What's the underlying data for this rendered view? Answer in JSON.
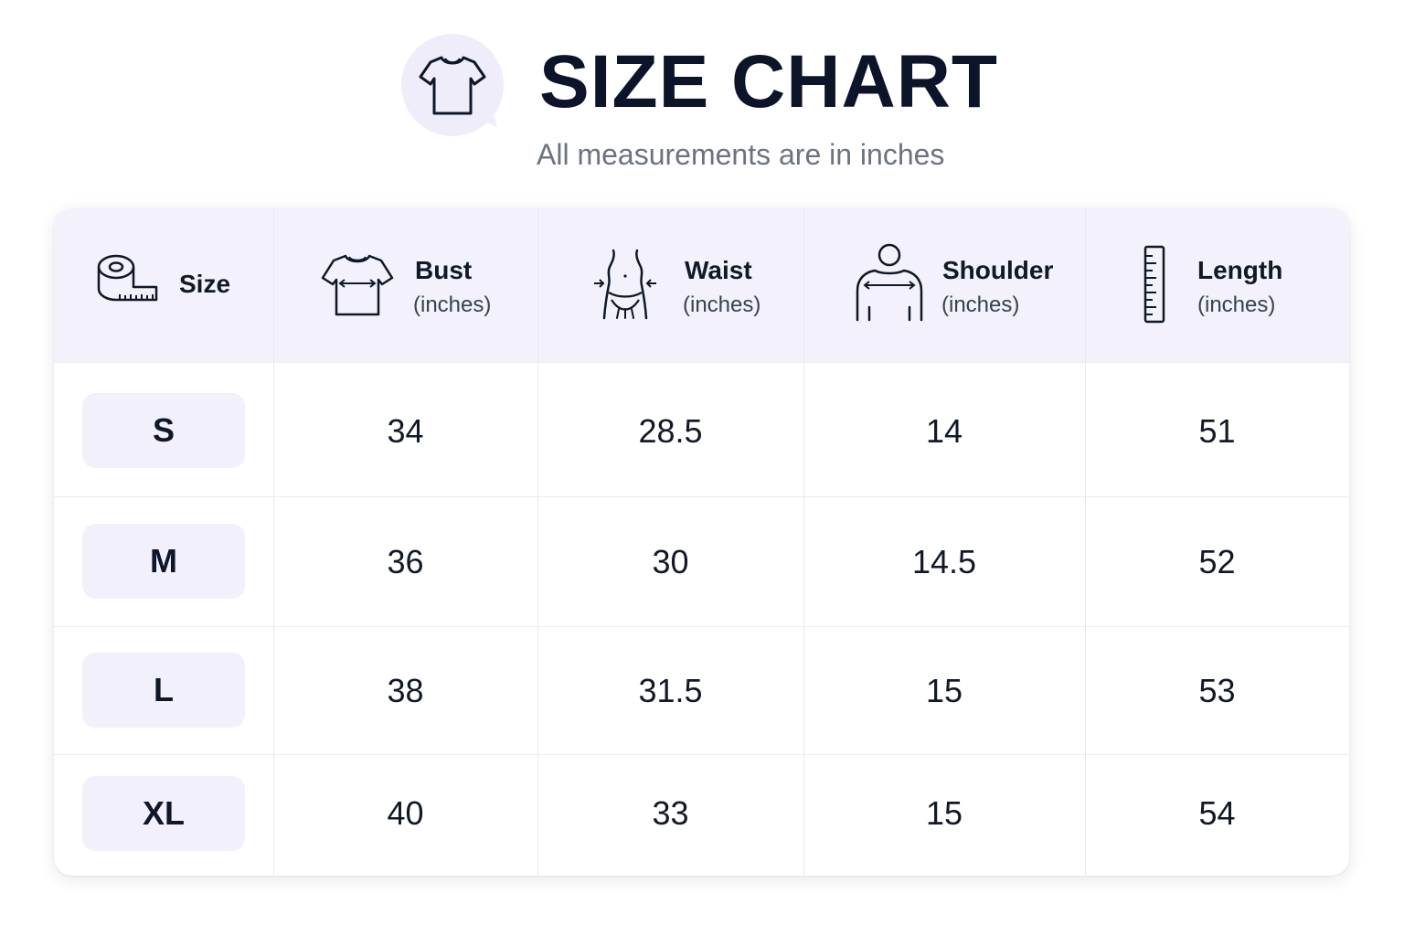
{
  "header": {
    "title": "SIZE CHART",
    "subtitle": "All measurements are in inches",
    "logo_icon": "t-shirt-icon"
  },
  "table": {
    "columns": [
      {
        "name": "Size",
        "unit": "",
        "icon": "measuring-tape-icon"
      },
      {
        "name": "Bust",
        "unit": "(inches)",
        "icon": "shirt-bust-icon"
      },
      {
        "name": "Waist",
        "unit": "(inches)",
        "icon": "waist-icon"
      },
      {
        "name": "Shoulder",
        "unit": "(inches)",
        "icon": "shoulder-icon"
      },
      {
        "name": "Length",
        "unit": "(inches)",
        "icon": "ruler-icon"
      }
    ],
    "rows": [
      {
        "size": "S",
        "bust": "34",
        "waist": "28.5",
        "shoulder": "14",
        "length": "51"
      },
      {
        "size": "M",
        "bust": "36",
        "waist": "30",
        "shoulder": "14.5",
        "length": "52"
      },
      {
        "size": "L",
        "bust": "38",
        "waist": "31.5",
        "shoulder": "15",
        "length": "53"
      },
      {
        "size": "XL",
        "bust": "40",
        "waist": "33",
        "shoulder": "15",
        "length": "54"
      }
    ]
  },
  "colors": {
    "header_bg": "#f3f1fb",
    "pill_bg": "#f2f0fb",
    "title": "#0b1428",
    "subtitle": "#6b7280"
  }
}
